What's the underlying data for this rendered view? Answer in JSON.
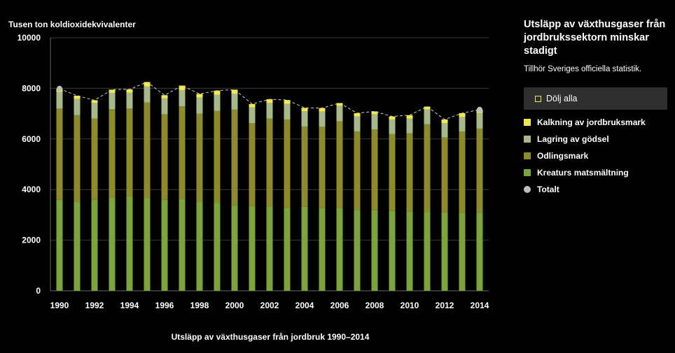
{
  "chart_data": {
    "type": "bar",
    "stacked": true,
    "ylabel": "Tusen ton koldioxidekvivalenter",
    "xlabel": "Utsläpp av växthusgaser från jordbruk 1990–2014",
    "ylim": [
      0,
      10000
    ],
    "yticks": [
      "0",
      "2000",
      "4000",
      "6000",
      "8000",
      "10000"
    ],
    "categories": [
      "1990",
      "1991",
      "1992",
      "1993",
      "1994",
      "1995",
      "1996",
      "1997",
      "1998",
      "1999",
      "2000",
      "2001",
      "2002",
      "2003",
      "2004",
      "2005",
      "2006",
      "2007",
      "2008",
      "2009",
      "2010",
      "2011",
      "2012",
      "2013",
      "2014"
    ],
    "xticks": [
      "1990",
      "1992",
      "1994",
      "1996",
      "1998",
      "2000",
      "2002",
      "2004",
      "2006",
      "2008",
      "2010",
      "2012",
      "2014"
    ],
    "grid": true,
    "series": [
      {
        "name": "Kreaturs matsmältning",
        "color": "#7ca33c",
        "values": [
          3600,
          3520,
          3600,
          3700,
          3740,
          3660,
          3600,
          3620,
          3520,
          3480,
          3380,
          3360,
          3330,
          3270,
          3320,
          3270,
          3260,
          3200,
          3180,
          3160,
          3140,
          3120,
          3100,
          3090,
          3090
        ]
      },
      {
        "name": "Odlingsmark",
        "color": "#8c8a2b",
        "values": [
          3600,
          3420,
          3210,
          3480,
          3460,
          3780,
          3370,
          3670,
          3480,
          3630,
          3780,
          3270,
          3480,
          3500,
          3170,
          3210,
          3440,
          3100,
          3200,
          3030,
          3080,
          3460,
          2960,
          3200,
          3320
        ]
      },
      {
        "name": "Lagring av gödsel",
        "color": "#a7b98a",
        "values": [
          650,
          640,
          610,
          640,
          630,
          630,
          630,
          640,
          630,
          630,
          630,
          620,
          610,
          610,
          600,
          600,
          600,
          590,
          590,
          580,
          580,
          580,
          570,
          570,
          620
        ]
      },
      {
        "name": "Kalkning av jordbruksmark",
        "color": "#f2e94e",
        "values": [
          140,
          130,
          110,
          130,
          130,
          180,
          130,
          180,
          150,
          170,
          160,
          130,
          150,
          160,
          140,
          140,
          120,
          130,
          120,
          120,
          140,
          120,
          140,
          160,
          130
        ]
      }
    ],
    "total": {
      "name": "Totalt",
      "color": "#bfbfbf",
      "values": [
        7990,
        7710,
        7530,
        7950,
        7960,
        8250,
        7730,
        8110,
        7780,
        7910,
        7950,
        7380,
        7570,
        7540,
        7230,
        7220,
        7420,
        7020,
        7090,
        6890,
        6940,
        7280,
        6770,
        7020,
        7160
      ]
    }
  },
  "sidebar": {
    "title": "Utsläpp av växthusgaser från jordbrukssektorn minskar stadigt",
    "subtitle": "Tillhör Sveriges officiella statistik.",
    "toggle_label": "Dölj alla",
    "toggle_color": "#f2e94e"
  },
  "legend": [
    {
      "label": "Kalkning av jordbruksmark",
      "color": "#f2e94e"
    },
    {
      "label": "Lagring av gödsel",
      "color": "#a7b98a"
    },
    {
      "label": "Odlingsmark",
      "color": "#8c8a2b"
    },
    {
      "label": "Kreaturs matsmältning",
      "color": "#7ca33c"
    },
    {
      "label": "Totalt",
      "color": "#bfbfbf"
    }
  ]
}
